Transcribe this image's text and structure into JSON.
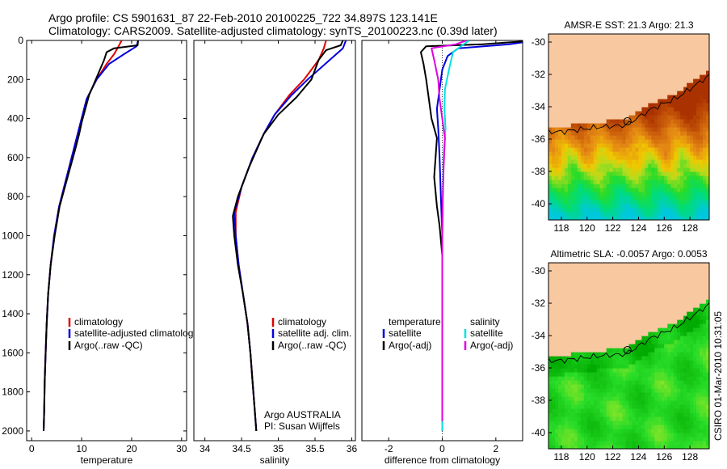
{
  "header": {
    "line1": "Argo profile: CS 5901631_87 22-Feb-2010 20100225_722 34.897S 123.141E",
    "line2": "Climatology: CARS2009. Satellite-adjusted climatology: synTS_20100223.nc (0.39d later)"
  },
  "footer": {
    "argo_country": "Argo AUSTRALIA",
    "pi": "PI: Susan Wijffels",
    "stamp": "CSIRO 01-Mar-2010 10:31:05"
  },
  "colors": {
    "climatology": "#e00000",
    "satellite": "#0000e0",
    "argo": "#000000",
    "salinity_satellite": "#00e0e0",
    "salinity_argo": "#e000e0",
    "land": "#f8c8a0"
  },
  "chart_data": [
    {
      "type": "line",
      "xlabel": "temperature",
      "ylabel": "",
      "xlim": [
        -1,
        31
      ],
      "ylim": [
        2050,
        0
      ],
      "xticks": [
        0,
        10,
        20,
        30
      ],
      "yticks": [
        0,
        200,
        400,
        600,
        800,
        1000,
        1200,
        1400,
        1600,
        1800,
        2000
      ],
      "legend": {
        "entries": [
          "climatology",
          "satellite-adjusted climatology",
          "Argo(..raw -QC)"
        ]
      },
      "series": [
        {
          "name": "climatology",
          "color": "#e00000",
          "x": [
            18.0,
            17.4,
            16.5,
            15.0,
            13.0,
            11.0,
            9.8,
            8.5,
            7.0,
            5.5,
            4.5,
            3.8,
            3.3,
            3.0,
            2.8,
            2.6,
            2.5,
            2.4
          ],
          "y": [
            0,
            30,
            70,
            120,
            200,
            300,
            420,
            550,
            700,
            850,
            1000,
            1150,
            1300,
            1450,
            1600,
            1750,
            1900,
            2000
          ]
        },
        {
          "name": "satellite-adjusted climatology",
          "color": "#0000e0",
          "x": [
            21.3,
            21.0,
            18.5,
            15.5,
            13.0,
            11.0,
            9.8,
            8.5,
            7.0,
            5.5,
            4.5,
            3.8,
            3.3,
            3.0,
            2.8,
            2.6,
            2.5,
            2.4
          ],
          "y": [
            0,
            30,
            70,
            120,
            200,
            300,
            420,
            550,
            700,
            850,
            1000,
            1150,
            1300,
            1450,
            1600,
            1750,
            1900,
            2000
          ]
        },
        {
          "name": "Argo(..raw -QC)",
          "color": "#000000",
          "x": [
            21.3,
            21.2,
            16.5,
            15.0,
            14.5,
            13.5,
            11.5,
            10.0,
            9.5,
            8.7,
            7.2,
            5.6,
            4.6,
            3.8,
            3.3,
            3.0,
            2.8,
            2.6,
            2.5,
            2.4
          ],
          "y": [
            0,
            25,
            40,
            60,
            100,
            160,
            280,
            420,
            480,
            560,
            700,
            850,
            1000,
            1150,
            1300,
            1450,
            1600,
            1750,
            1900,
            2000
          ]
        }
      ]
    },
    {
      "type": "line",
      "xlabel": "salinity",
      "ylabel": "",
      "xlim": [
        33.85,
        36.05
      ],
      "ylim": [
        2050,
        0
      ],
      "xticks": [
        34,
        34.5,
        35,
        35.5,
        36
      ],
      "xticklabels": [
        "34",
        "34.5",
        "35",
        "35.5",
        "36"
      ],
      "legend": {
        "entries": [
          "climatology",
          "satellite adj. clim.",
          "Argo(..raw -QC)"
        ]
      },
      "series": [
        {
          "name": "climatology",
          "color": "#e00000",
          "x": [
            35.65,
            35.62,
            35.55,
            35.35,
            35.15,
            34.95,
            34.8,
            34.65,
            34.5,
            34.42,
            34.42,
            34.46,
            34.52,
            34.58,
            34.62,
            34.65,
            34.68,
            34.7
          ],
          "y": [
            0,
            40,
            100,
            200,
            280,
            380,
            480,
            600,
            750,
            880,
            1000,
            1150,
            1300,
            1450,
            1600,
            1750,
            1900,
            2000
          ]
        },
        {
          "name": "satellite adj. clim.",
          "color": "#0000e0",
          "x": [
            35.92,
            35.88,
            35.7,
            35.4,
            35.18,
            34.95,
            34.8,
            34.65,
            34.5,
            34.4,
            34.42,
            34.46,
            34.52,
            34.58,
            34.62,
            34.65,
            34.68,
            34.7
          ],
          "y": [
            0,
            40,
            100,
            200,
            280,
            380,
            480,
            600,
            750,
            880,
            1000,
            1150,
            1300,
            1450,
            1600,
            1750,
            1900,
            2000
          ]
        },
        {
          "name": "Argo(..raw -QC)",
          "color": "#000000",
          "x": [
            35.88,
            35.85,
            35.65,
            35.55,
            35.45,
            35.25,
            35.0,
            34.8,
            34.6,
            34.45,
            34.38,
            34.4,
            34.45,
            34.52,
            34.58,
            34.62,
            34.65,
            34.68,
            34.7
          ],
          "y": [
            0,
            25,
            50,
            100,
            200,
            290,
            380,
            480,
            650,
            800,
            900,
            1000,
            1150,
            1300,
            1450,
            1600,
            1750,
            1900,
            2000
          ]
        }
      ]
    },
    {
      "type": "line",
      "xlabel": "difference from climatology",
      "ylabel": "",
      "xlim": [
        -3,
        3
      ],
      "ylim": [
        2050,
        0
      ],
      "xticks": [
        -2,
        0,
        2
      ],
      "legend": {
        "entries": [
          "temperature",
          "satellite",
          "Argo(-adj)",
          "salinity",
          "satellite",
          "Argo(-adj)"
        ]
      },
      "series": [
        {
          "name": "satellite",
          "group": "temperature",
          "color": "#0000e0",
          "x": [
            3.5,
            2.5,
            0.6,
            0.2,
            0.0,
            -0.1,
            -0.2,
            -0.15,
            -0.1,
            -0.05,
            0.0,
            0.0,
            0.0,
            0.0,
            0.0,
            0.0
          ],
          "y": [
            0,
            20,
            40,
            80,
            150,
            250,
            350,
            450,
            600,
            800,
            1000,
            1200,
            1400,
            1600,
            1800,
            2000
          ]
        },
        {
          "name": "Argo(-adj)",
          "group": "temperature",
          "color": "#000000",
          "x": [
            3.5,
            1.5,
            -0.6,
            -0.8,
            -0.7,
            -0.6,
            -0.5,
            -0.4,
            -0.2,
            -0.3,
            -0.2,
            -0.1,
            0.0,
            0.0,
            0.0,
            0.0,
            0.0
          ],
          "y": [
            0,
            20,
            30,
            60,
            120,
            200,
            300,
            400,
            500,
            700,
            850,
            950,
            1100,
            1300,
            1500,
            1700,
            1950
          ]
        },
        {
          "name": "satellite",
          "group": "salinity",
          "color": "#00e0e0",
          "x": [
            1.0,
            0.8,
            0.4,
            0.25,
            0.1,
            0.08,
            0.12,
            0.05,
            0.02,
            0.0,
            0.0,
            0.0,
            0.0,
            0.0
          ],
          "y": [
            0,
            20,
            60,
            150,
            250,
            350,
            450,
            600,
            800,
            1000,
            1200,
            1400,
            1700,
            2000
          ]
        },
        {
          "name": "Argo(-adj)",
          "group": "salinity",
          "color": "#e000e0",
          "x": [
            0.9,
            0.5,
            -0.4,
            -0.3,
            -0.15,
            -0.1,
            0.0,
            0.1,
            0.05,
            0.02,
            0.0,
            0.0,
            0.0,
            0.0
          ],
          "y": [
            0,
            20,
            40,
            100,
            200,
            300,
            400,
            500,
            650,
            800,
            1000,
            1300,
            1600,
            1950
          ]
        }
      ]
    },
    {
      "type": "heatmap",
      "title": "AMSR-E SST: 21.3 Argo: 21.3",
      "xlim": [
        117,
        129.5
      ],
      "ylim": [
        -41,
        -29.5
      ],
      "xticks": [
        118,
        120,
        122,
        124,
        126,
        128
      ],
      "yticks": [
        -30,
        -32,
        -34,
        -36,
        -38,
        -40
      ],
      "marker": {
        "lon": 123.141,
        "lat": -34.897
      }
    },
    {
      "type": "heatmap",
      "title": "Altimetric SLA: -0.0057 Argo: 0.0053",
      "xlim": [
        117,
        129.5
      ],
      "ylim": [
        -41,
        -29.5
      ],
      "xticks": [
        118,
        120,
        122,
        124,
        126,
        128
      ],
      "yticks": [
        -30,
        -32,
        -34,
        -36,
        -38,
        -40
      ],
      "marker": {
        "lon": 123.141,
        "lat": -34.897
      }
    }
  ]
}
